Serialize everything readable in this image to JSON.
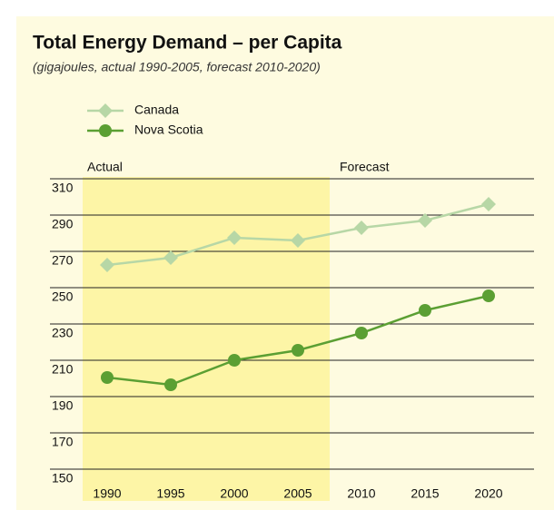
{
  "chart_data": {
    "type": "line",
    "title": "Total Energy Demand – per Capita",
    "subtitle": "(gigajoules, actual 1990-2005,  forecast 2010-2020)",
    "annotations": [
      "Actual",
      "Forecast"
    ],
    "categories": [
      "1990",
      "1995",
      "2000",
      "2005",
      "2010",
      "2015",
      "2020"
    ],
    "series": [
      {
        "name": "Canada",
        "color": "#b7d7a6",
        "marker": "diamond",
        "values": [
          262.5,
          266.5,
          277.5,
          276,
          283,
          287,
          296
        ]
      },
      {
        "name": "Nova Scotia",
        "color": "#5b9f33",
        "marker": "circle",
        "values": [
          200.5,
          196.5,
          210,
          215.5,
          225,
          237.5,
          245.5
        ]
      }
    ],
    "ylim": [
      150,
      310
    ],
    "yticks": [
      150,
      170,
      190,
      210,
      230,
      250,
      270,
      290,
      310
    ],
    "grid": true
  }
}
